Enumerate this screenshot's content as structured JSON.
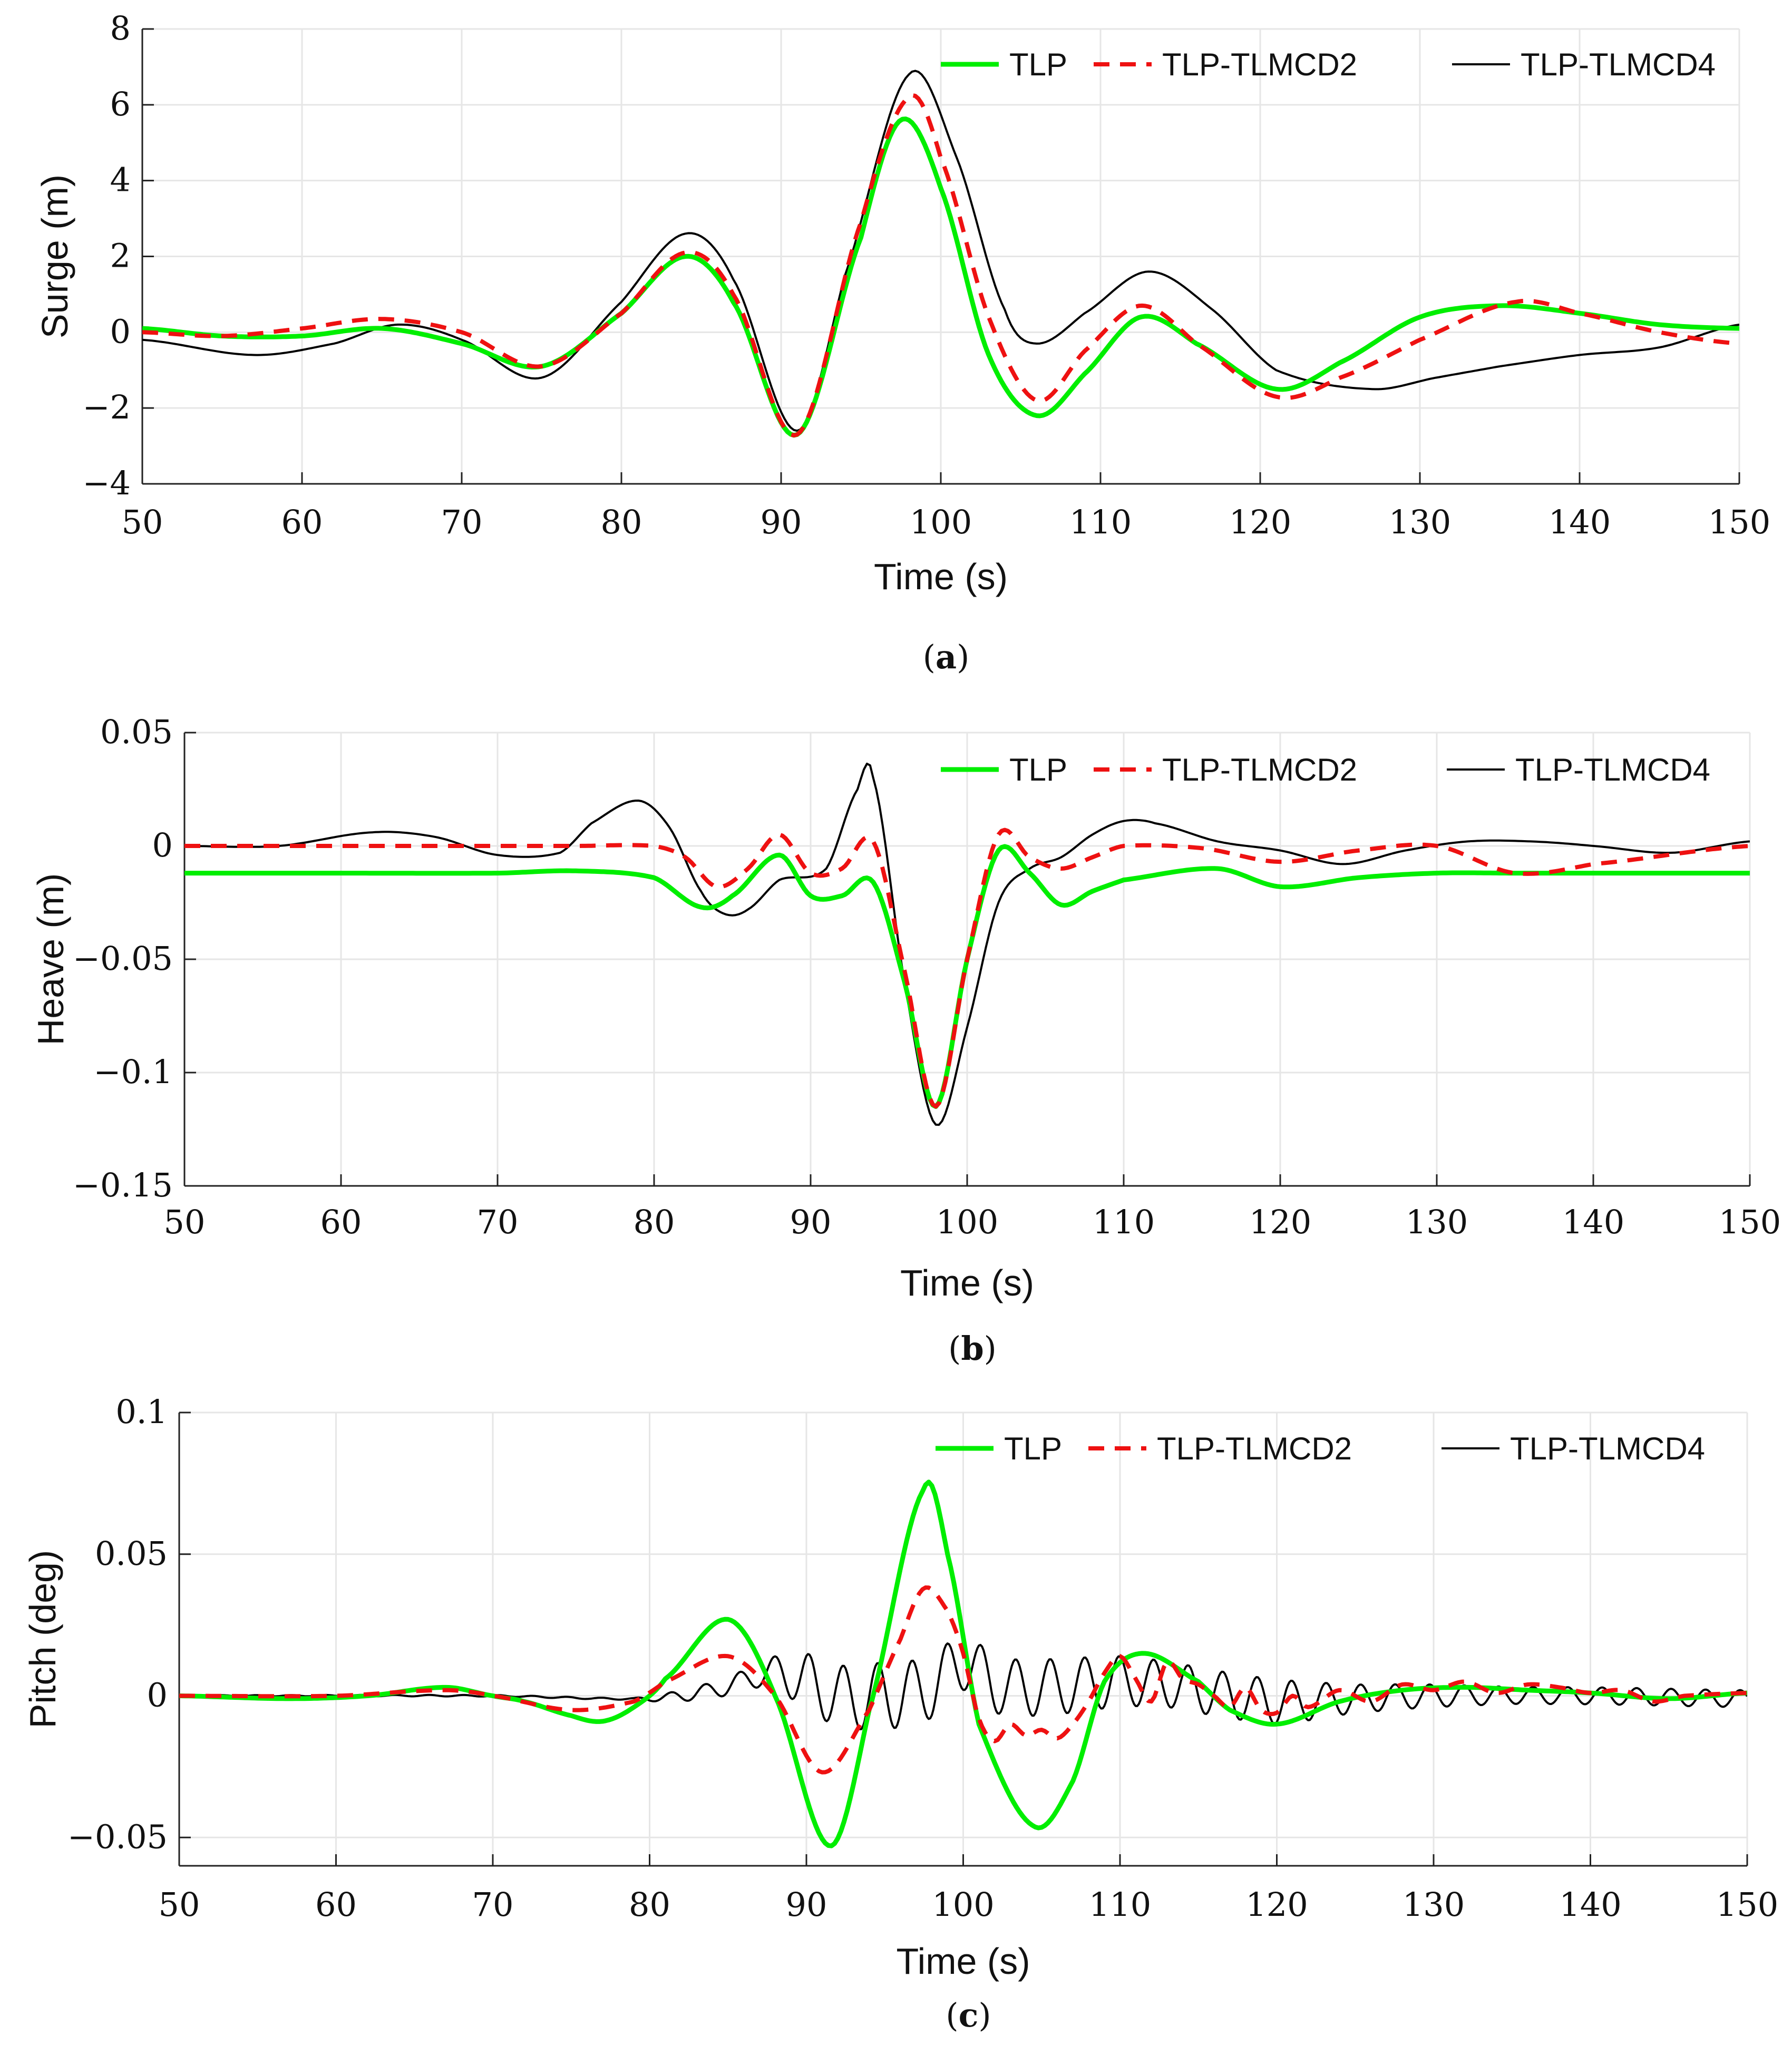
{
  "colors": {
    "TLP": "#00ee00",
    "TLP-TLMCD2": "#ee1111",
    "TLP-TLMCD4": "#000000",
    "grid": "#e6e6e6",
    "axis": "#222222"
  },
  "chart_data": [
    {
      "type": "line",
      "panel_label": "a",
      "caption_open": "(",
      "caption_close": ")",
      "xlabel": "Time (s)",
      "ylabel": "Surge (m)",
      "xlim": [
        50,
        150
      ],
      "ylim": [
        -4,
        8
      ],
      "xticks": [
        50,
        60,
        70,
        80,
        90,
        100,
        110,
        120,
        130,
        140,
        150
      ],
      "xtick_labels": [
        "50",
        "60",
        "70",
        "80",
        "90",
        "100",
        "110",
        "120",
        "130",
        "140",
        "150"
      ],
      "yticks": [
        -4,
        -2,
        0,
        2,
        4,
        6,
        8
      ],
      "ytick_labels": [
        "−4",
        "−2",
        "0",
        "2",
        "4",
        "6",
        "8"
      ],
      "grid": true,
      "legend_location": "top-right",
      "series": [
        {
          "name": "TLP",
          "style": "solid-thick",
          "x": [
            50,
            55,
            60,
            65,
            70,
            75,
            80,
            84,
            87,
            91,
            95,
            97.5,
            100,
            103,
            106,
            109,
            112.5,
            116,
            121,
            125,
            130,
            135,
            140,
            145,
            150
          ],
          "values": [
            0.1,
            -0.1,
            -0.1,
            0.1,
            -0.3,
            -0.9,
            0.5,
            2.0,
            0.8,
            -2.7,
            2.5,
            5.6,
            3.8,
            -0.6,
            -2.2,
            -1.1,
            0.4,
            -0.3,
            -1.5,
            -0.8,
            0.4,
            0.7,
            0.5,
            0.2,
            0.1
          ]
        },
        {
          "name": "TLP-TLMCD2",
          "style": "dashed",
          "x": [
            50,
            55,
            60,
            65,
            70,
            75,
            80,
            84,
            87,
            91,
            95,
            98,
            100,
            103,
            106,
            109,
            112.5,
            116,
            121,
            125,
            130,
            136,
            140,
            145,
            150
          ],
          "values": [
            0.0,
            -0.1,
            0.1,
            0.35,
            0.0,
            -0.9,
            0.5,
            2.1,
            1.0,
            -2.7,
            2.9,
            6.2,
            4.6,
            0.4,
            -1.8,
            -0.5,
            0.7,
            -0.3,
            -1.7,
            -1.2,
            -0.2,
            0.8,
            0.5,
            0.0,
            -0.3
          ]
        },
        {
          "name": "TLP-TLMCD4",
          "style": "solid-thin",
          "x": [
            50,
            57,
            62,
            66,
            70,
            75,
            80,
            84,
            87,
            91,
            94,
            98,
            101,
            104,
            106,
            109,
            113,
            117,
            121,
            127,
            131,
            135,
            140,
            145,
            150
          ],
          "values": [
            -0.2,
            -0.6,
            -0.3,
            0.2,
            -0.2,
            -1.2,
            0.8,
            2.6,
            1.4,
            -2.6,
            1.5,
            6.8,
            4.6,
            0.6,
            -0.3,
            0.5,
            1.6,
            0.6,
            -1.0,
            -1.5,
            -1.2,
            -0.9,
            -0.6,
            -0.4,
            0.2
          ]
        }
      ]
    },
    {
      "type": "line",
      "panel_label": "b",
      "caption_open": "(",
      "caption_close": ")",
      "xlabel": "Time (s)",
      "ylabel": "Heave (m)",
      "xlim": [
        50,
        150
      ],
      "ylim": [
        -0.15,
        0.05
      ],
      "xticks": [
        50,
        60,
        70,
        80,
        90,
        100,
        110,
        120,
        130,
        140,
        150
      ],
      "xtick_labels": [
        "50",
        "60",
        "70",
        "80",
        "90",
        "100",
        "110",
        "120",
        "130",
        "140",
        "150"
      ],
      "yticks": [
        -0.15,
        -0.1,
        -0.05,
        0,
        0.05
      ],
      "ytick_labels": [
        "−0.15",
        "−0.1",
        "−0.05",
        "0",
        "0.05"
      ],
      "grid": true,
      "legend_location": "top-right",
      "series": [
        {
          "name": "TLP",
          "style": "solid-thick",
          "x": [
            50,
            60,
            70,
            75,
            80,
            83,
            85,
            88,
            90,
            92,
            94,
            96,
            98,
            100,
            102,
            104,
            106,
            108,
            110,
            116,
            120,
            125,
            130,
            135,
            140,
            150
          ],
          "values": [
            -0.012,
            -0.012,
            -0.012,
            -0.011,
            -0.014,
            -0.027,
            -0.022,
            -0.004,
            -0.022,
            -0.022,
            -0.016,
            -0.06,
            -0.115,
            -0.05,
            -0.002,
            -0.012,
            -0.026,
            -0.02,
            -0.015,
            -0.01,
            -0.018,
            -0.014,
            -0.012,
            -0.012,
            -0.012,
            -0.012
          ]
        },
        {
          "name": "TLP-TLMCD2",
          "style": "dashed",
          "x": [
            50,
            60,
            70,
            75,
            80,
            82,
            84,
            86,
            88,
            90,
            92,
            94,
            96,
            98,
            100,
            102,
            104,
            106,
            108,
            110,
            115,
            120,
            125,
            130,
            135,
            140,
            150
          ],
          "values": [
            0.0,
            0.0,
            0.0,
            0.0,
            0.0,
            -0.005,
            -0.018,
            -0.01,
            0.005,
            -0.012,
            -0.01,
            0.002,
            -0.055,
            -0.115,
            -0.05,
            0.005,
            -0.005,
            -0.01,
            -0.005,
            0.0,
            -0.001,
            -0.007,
            -0.002,
            0.0,
            -0.012,
            -0.008,
            0.0
          ]
        },
        {
          "name": "TLP-TLMCD4",
          "style": "solid-thin",
          "x": [
            50,
            56,
            62,
            66,
            70,
            74,
            76,
            79,
            81,
            83,
            84.5,
            86,
            88,
            91,
            93,
            94,
            96,
            98,
            100,
            102,
            104,
            106,
            108,
            110,
            112,
            116,
            120,
            124,
            128,
            132,
            136,
            140,
            145,
            150
          ],
          "values": [
            0.0,
            0.0,
            0.006,
            0.004,
            -0.004,
            -0.003,
            0.01,
            0.02,
            0.008,
            -0.02,
            -0.03,
            -0.028,
            -0.015,
            -0.01,
            0.025,
            0.03,
            -0.06,
            -0.123,
            -0.08,
            -0.025,
            -0.01,
            -0.005,
            0.005,
            0.011,
            0.01,
            0.002,
            -0.002,
            -0.008,
            -0.002,
            0.002,
            0.002,
            0.0,
            -0.003,
            0.002
          ]
        }
      ]
    },
    {
      "type": "line",
      "panel_label": "c",
      "caption_open": "(",
      "caption_close": ")",
      "xlabel": "Time (s)",
      "ylabel": "Pitch (deg)",
      "xlim": [
        50,
        150
      ],
      "ylim": [
        -0.06,
        0.1
      ],
      "xticks": [
        50,
        60,
        70,
        80,
        90,
        100,
        110,
        120,
        130,
        140,
        150
      ],
      "xtick_labels": [
        "50",
        "60",
        "70",
        "80",
        "90",
        "100",
        "110",
        "120",
        "130",
        "140",
        "150"
      ],
      "yticks": [
        -0.05,
        0,
        0.05,
        0.1
      ],
      "ytick_labels": [
        "−0.05",
        "0",
        "0.05",
        "0.1"
      ],
      "grid": true,
      "legend_location": "top-right",
      "series": [
        {
          "name": "TLP",
          "style": "solid-thick",
          "x": [
            50,
            57,
            62,
            67,
            70,
            72,
            75,
            77,
            79,
            81,
            85,
            88,
            91.5,
            94,
            97.5,
            99,
            101,
            104.5,
            107,
            109,
            111.5,
            115,
            117,
            120,
            124,
            128,
            132,
            136,
            140,
            145,
            150
          ],
          "values": [
            0.0,
            -0.001,
            0.0,
            0.003,
            0.0,
            -0.002,
            -0.007,
            -0.009,
            -0.004,
            0.006,
            0.027,
            0.0,
            -0.053,
            -0.005,
            0.073,
            0.05,
            -0.01,
            -0.046,
            -0.03,
            0.005,
            0.015,
            0.005,
            -0.005,
            -0.01,
            -0.002,
            0.002,
            0.003,
            0.002,
            0.001,
            -0.001,
            0.001
          ]
        },
        {
          "name": "TLP-TLMCD2",
          "style": "dashed",
          "x": [
            50,
            60,
            67,
            70,
            75,
            79,
            81,
            85,
            88,
            91,
            94,
            96,
            97.5,
            99,
            100,
            101,
            102,
            103,
            104,
            105,
            106,
            107,
            108,
            109,
            110,
            111,
            112,
            113,
            114,
            115,
            116,
            117,
            118,
            119,
            120,
            121,
            122,
            124,
            126,
            128,
            130,
            132,
            134,
            136,
            138,
            140,
            142,
            144,
            146,
            150
          ],
          "values": [
            0.0,
            0.0,
            0.002,
            0.0,
            -0.005,
            -0.002,
            0.005,
            0.014,
            0.0,
            -0.027,
            -0.005,
            0.02,
            0.038,
            0.03,
            0.015,
            -0.008,
            -0.016,
            -0.01,
            -0.014,
            -0.012,
            -0.015,
            -0.01,
            -0.002,
            0.008,
            0.014,
            0.006,
            -0.002,
            0.012,
            0.006,
            0.004,
            0.0,
            -0.004,
            0.003,
            -0.005,
            -0.006,
            0.0,
            -0.004,
            0.002,
            -0.002,
            0.004,
            0.002,
            0.005,
            0.001,
            0.004,
            0.003,
            0.001,
            0.002,
            -0.002,
            0.0,
            0.001
          ]
        }
      ]
    }
  ],
  "pitch_tlmcd4": {
    "name": "TLP-TLMCD4",
    "style": "solid-thin",
    "note": "high-frequency oscillatory series",
    "x_start": 50,
    "x_end": 150,
    "base_knots_x": [
      50,
      70,
      80,
      84,
      88,
      90,
      92,
      95,
      98,
      100,
      102,
      105,
      110,
      113,
      116,
      120,
      125,
      130,
      140,
      150
    ],
    "base_knots_y": [
      0.0,
      0.0,
      -0.001,
      0.002,
      0.008,
      0.005,
      0.0,
      0.0,
      0.003,
      0.012,
      0.004,
      0.003,
      0.005,
      0.004,
      0.001,
      -0.002,
      -0.001,
      0.0,
      0.0,
      -0.001
    ],
    "amp_knots_x": [
      50,
      79,
      82,
      87,
      90,
      95,
      100,
      105,
      110,
      113,
      116,
      120,
      125,
      135,
      150
    ],
    "amp_knots_y": [
      0.0002,
      0.0003,
      0.002,
      0.004,
      0.01,
      0.012,
      0.01,
      0.01,
      0.009,
      0.008,
      0.008,
      0.008,
      0.005,
      0.003,
      0.003
    ],
    "period_s": 2.2
  }
}
